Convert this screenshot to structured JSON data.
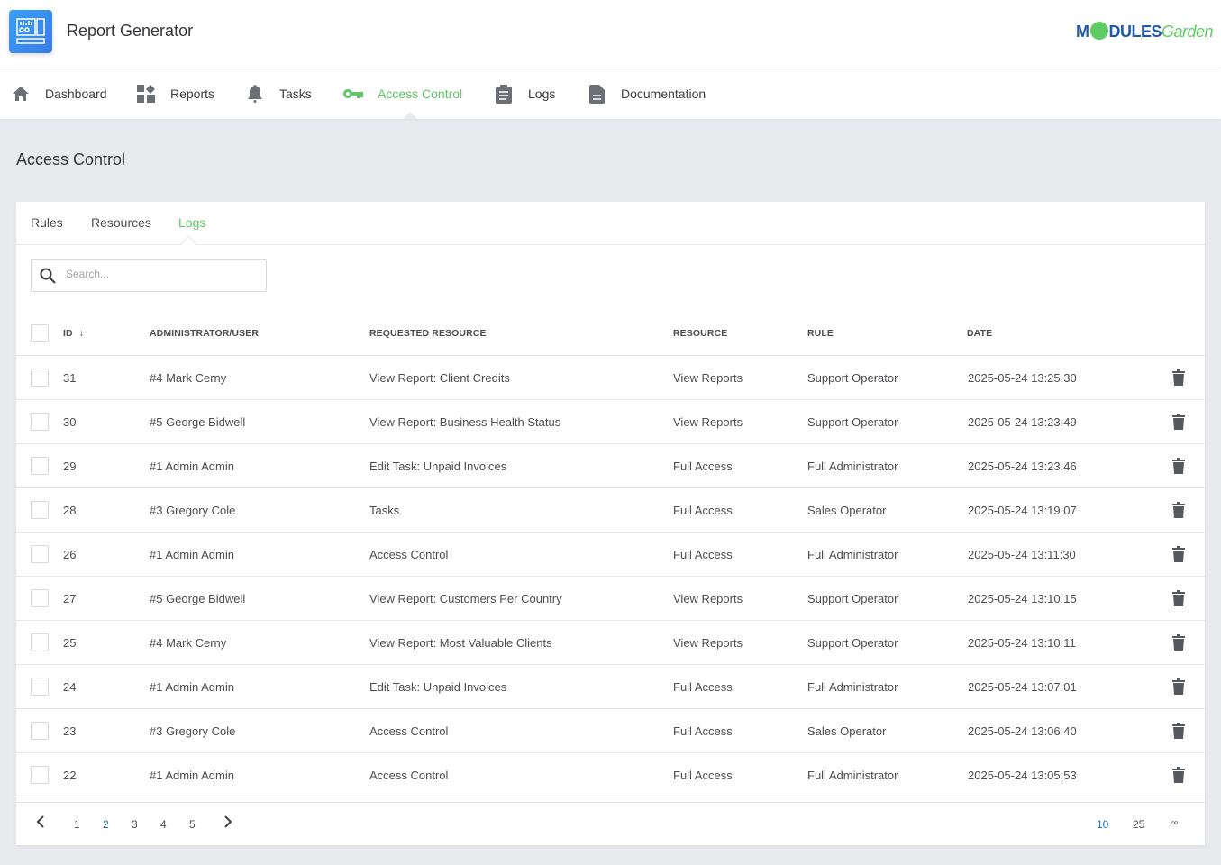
{
  "app": {
    "title": "Report Generator",
    "logo_text": "MODULESGarden"
  },
  "nav": {
    "items": [
      {
        "label": "Dashboard",
        "icon": "home-icon"
      },
      {
        "label": "Reports",
        "icon": "widgets-icon"
      },
      {
        "label": "Tasks",
        "icon": "bell-icon"
      },
      {
        "label": "Access Control",
        "icon": "key-icon",
        "active": true
      },
      {
        "label": "Logs",
        "icon": "clipboard-icon"
      },
      {
        "label": "Documentation",
        "icon": "document-icon"
      }
    ]
  },
  "page": {
    "title": "Access Control"
  },
  "tabs": [
    {
      "label": "Rules"
    },
    {
      "label": "Resources"
    },
    {
      "label": "Logs",
      "active": true
    }
  ],
  "search": {
    "placeholder": "Search...",
    "value": ""
  },
  "table": {
    "columns": [
      "ID",
      "ADMINISTRATOR/USER",
      "REQUESTED RESOURCE",
      "RESOURCE",
      "RULE",
      "DATE"
    ],
    "sort": {
      "column": "ID",
      "direction": "desc"
    },
    "rows": [
      {
        "id": "31",
        "user": "#4 Mark Cerny",
        "requested": "View Report: Client Credits",
        "resource": "View Reports",
        "rule": "Support Operator",
        "date": "2025-05-24 13:25:30"
      },
      {
        "id": "30",
        "user": "#5 George Bidwell",
        "requested": "View Report: Business Health Status",
        "resource": "View Reports",
        "rule": "Support Operator",
        "date": "2025-05-24 13:23:49"
      },
      {
        "id": "29",
        "user": "#1 Admin Admin",
        "requested": "Edit Task: Unpaid Invoices",
        "resource": "Full Access",
        "rule": "Full Administrator",
        "date": "2025-05-24 13:23:46"
      },
      {
        "id": "28",
        "user": "#3 Gregory Cole",
        "requested": "Tasks",
        "resource": "Full Access",
        "rule": "Sales Operator",
        "date": "2025-05-24 13:19:07"
      },
      {
        "id": "26",
        "user": "#1 Admin Admin",
        "requested": "Access Control",
        "resource": "Full Access",
        "rule": "Full Administrator",
        "date": "2025-05-24 13:11:30"
      },
      {
        "id": "27",
        "user": "#5 George Bidwell",
        "requested": "View Report: Customers Per Country",
        "resource": "View Reports",
        "rule": "Support Operator",
        "date": "2025-05-24 13:10:15"
      },
      {
        "id": "25",
        "user": "#4 Mark Cerny",
        "requested": "View Report: Most Valuable Clients",
        "resource": "View Reports",
        "rule": "Support Operator",
        "date": "2025-05-24 13:10:11"
      },
      {
        "id": "24",
        "user": "#1 Admin Admin",
        "requested": "Edit Task: Unpaid Invoices",
        "resource": "Full Access",
        "rule": "Full Administrator",
        "date": "2025-05-24 13:07:01"
      },
      {
        "id": "23",
        "user": "#3 Gregory Cole",
        "requested": "Access Control",
        "resource": "Full Access",
        "rule": "Sales Operator",
        "date": "2025-05-24 13:06:40"
      },
      {
        "id": "22",
        "user": "#1 Admin Admin",
        "requested": "Access Control",
        "resource": "Full Access",
        "rule": "Full Administrator",
        "date": "2025-05-24 13:05:53"
      }
    ]
  },
  "pagination": {
    "pages": [
      "1",
      "2",
      "3",
      "4",
      "5"
    ],
    "current": "2",
    "page_sizes": [
      "10",
      "25",
      "∞"
    ],
    "current_size": "10"
  },
  "colors": {
    "accent": "#5cc763",
    "link_active": "#1e6bb8",
    "background": "#e9eaee"
  }
}
